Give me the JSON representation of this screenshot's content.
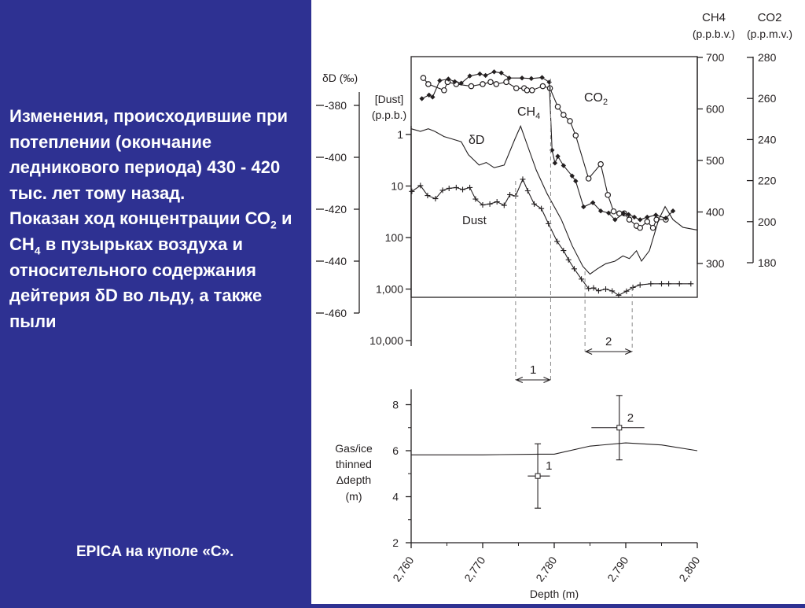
{
  "description": {
    "line1": "Изменения, происходившие при потеплении (окончание ледникового периода) 430 - 420 тыс. лет тому назад.",
    "line2_pre": "Показан ход концентрации СО",
    "sub1": "2",
    "line2_mid": " и СН",
    "sub2": "4",
    "line2_post": " в пузырьках воздуха и относительного содержания дейтерия δD во льду, а также пыли"
  },
  "caption": "EPICA  на куполе «С».",
  "colors": {
    "background": "#2e3192",
    "panel": "#ffffff",
    "ink": "#231f20",
    "dashed": "#8a8a8a"
  },
  "chart_data": [
    {
      "type": "line",
      "x_label": "Depth (m)",
      "x_ticks": [
        "2,760",
        "2,770",
        "2,780",
        "2,790",
        "2,800"
      ],
      "xlim": [
        2760,
        2800
      ],
      "axes": {
        "dD": {
          "label": "δD (‰)",
          "ticks": [
            "-380",
            "-400",
            "-420",
            "-440",
            "-460"
          ],
          "range": [
            -460,
            -380
          ]
        },
        "dust": {
          "label_line1": "[Dust]",
          "label_line2": "(p.p.b.)",
          "ticks": [
            "1",
            "10",
            "100",
            "1,000",
            "10,000"
          ],
          "scale": "log",
          "range": [
            1,
            10000
          ]
        },
        "ch4": {
          "label_line1": "CH4",
          "label_line2": "(p.p.b.v.)",
          "ticks": [
            "700",
            "600",
            "500",
            "400",
            "300"
          ],
          "range": [
            300,
            700
          ]
        },
        "co2": {
          "label_line1": "CO2",
          "label_line2": "(p.p.m.v.)",
          "ticks": [
            "280",
            "260",
            "240",
            "220",
            "200",
            "180"
          ],
          "range": [
            180,
            280
          ]
        }
      },
      "series_labels": {
        "co2": {
          "main": "CO",
          "sub": "2"
        },
        "ch4": {
          "main": "CH",
          "sub": "4"
        },
        "dD": "δD",
        "dust": "Dust"
      },
      "events": [
        {
          "label": "1",
          "x0": 2774.6,
          "x1": 2779.5
        },
        {
          "label": "2",
          "x0": 2784.3,
          "x1": 2790.9
        }
      ],
      "series": [
        {
          "id": "co2",
          "axis": "co2",
          "marker": "circle",
          "points": [
            [
              2761.7,
              270
            ],
            [
              2762.4,
              267
            ],
            [
              2764.6,
              264
            ],
            [
              2765.1,
              268
            ],
            [
              2766.3,
              267
            ],
            [
              2768.4,
              266
            ],
            [
              2770.0,
              267
            ],
            [
              2771.1,
              268
            ],
            [
              2771.9,
              267
            ],
            [
              2773.3,
              268
            ],
            [
              2774.7,
              265
            ],
            [
              2775.8,
              265
            ],
            [
              2776.2,
              264
            ],
            [
              2776.9,
              264
            ],
            [
              2778.4,
              266
            ],
            [
              2779.4,
              265
            ],
            [
              2780.5,
              256
            ],
            [
              2781.3,
              252
            ],
            [
              2782.2,
              249
            ],
            [
              2783.0,
              242
            ],
            [
              2784.8,
              221
            ],
            [
              2786.5,
              228
            ],
            [
              2787.5,
              213
            ],
            [
              2788.3,
              205
            ],
            [
              2789.1,
              204
            ],
            [
              2789.8,
              204
            ],
            [
              2790.5,
              201
            ],
            [
              2791.5,
              198
            ],
            [
              2792.0,
              197
            ],
            [
              2793.0,
              200
            ],
            [
              2793.8,
              197
            ],
            [
              2794.3,
              201
            ],
            [
              2795.6,
              201
            ]
          ]
        },
        {
          "id": "ch4",
          "axis": "ch4",
          "marker": "diamond",
          "points": [
            [
              2761.5,
              620
            ],
            [
              2762.5,
              627
            ],
            [
              2763.0,
              623
            ],
            [
              2764.0,
              655
            ],
            [
              2765.2,
              658
            ],
            [
              2766.1,
              653
            ],
            [
              2767.0,
              650
            ],
            [
              2768.2,
              664
            ],
            [
              2769.6,
              668
            ],
            [
              2770.4,
              665
            ],
            [
              2771.6,
              672
            ],
            [
              2772.6,
              670
            ],
            [
              2773.7,
              660
            ],
            [
              2775.5,
              660
            ],
            [
              2776.8,
              659
            ],
            [
              2778.3,
              661
            ],
            [
              2779.3,
              652
            ],
            [
              2779.7,
              520
            ],
            [
              2780.1,
              495
            ],
            [
              2780.5,
              508
            ],
            [
              2781.3,
              490
            ],
            [
              2782.5,
              470
            ],
            [
              2783.0,
              460
            ],
            [
              2784.1,
              410
            ],
            [
              2785.4,
              418
            ],
            [
              2786.5,
              402
            ],
            [
              2787.6,
              398
            ],
            [
              2788.5,
              385
            ],
            [
              2789.7,
              397
            ],
            [
              2790.4,
              395
            ],
            [
              2791.2,
              390
            ],
            [
              2792.0,
              385
            ],
            [
              2793.0,
              390
            ],
            [
              2794.2,
              394
            ],
            [
              2795.6,
              388
            ],
            [
              2796.6,
              402
            ]
          ]
        },
        {
          "id": "dD",
          "axis": "dD",
          "marker": "none",
          "points": [
            [
              2760.0,
              -389
            ],
            [
              2761.3,
              -390
            ],
            [
              2762.4,
              -389
            ],
            [
              2763.3,
              -390
            ],
            [
              2764.6,
              -392
            ],
            [
              2765.8,
              -393
            ],
            [
              2767.0,
              -394
            ],
            [
              2768.0,
              -399
            ],
            [
              2769.5,
              -403
            ],
            [
              2770.5,
              -402
            ],
            [
              2771.6,
              -404
            ],
            [
              2773.0,
              -403
            ],
            [
              2774.5,
              -393
            ],
            [
              2775.3,
              -388
            ],
            [
              2776.2,
              -395
            ],
            [
              2777.5,
              -405
            ],
            [
              2779.0,
              -414
            ],
            [
              2781.0,
              -424
            ],
            [
              2782.5,
              -434
            ],
            [
              2784.0,
              -442
            ],
            [
              2785.0,
              -445
            ],
            [
              2786.0,
              -443
            ],
            [
              2787.2,
              -441
            ],
            [
              2788.5,
              -440
            ],
            [
              2789.6,
              -438
            ],
            [
              2790.5,
              -439
            ],
            [
              2791.5,
              -436
            ],
            [
              2792.2,
              -440
            ],
            [
              2793.3,
              -436
            ],
            [
              2794.6,
              -424
            ],
            [
              2795.5,
              -419
            ],
            [
              2796.6,
              -424
            ],
            [
              2798.0,
              -427
            ],
            [
              2800.0,
              -428
            ]
          ]
        },
        {
          "id": "dust",
          "axis": "dust",
          "marker": "plus",
          "points": [
            [
              2760.1,
              12.7
            ],
            [
              2761.3,
              9.8
            ],
            [
              2762.3,
              15.3
            ],
            [
              2763.4,
              17.6
            ],
            [
              2764.4,
              12.1
            ],
            [
              2765.3,
              11.1
            ],
            [
              2766.3,
              10.7
            ],
            [
              2767.2,
              11.7
            ],
            [
              2768.2,
              10.7
            ],
            [
              2769.0,
              17.9
            ],
            [
              2770.0,
              23.3
            ],
            [
              2771.0,
              22.3
            ],
            [
              2772.0,
              20.2
            ],
            [
              2773.0,
              23.7
            ],
            [
              2773.8,
              14.7
            ],
            [
              2774.6,
              15.6
            ],
            [
              2775.6,
              7.4
            ],
            [
              2776.3,
              12.4
            ],
            [
              2777.2,
              22.3
            ],
            [
              2778.2,
              27.4
            ],
            [
              2779.2,
              54
            ],
            [
              2780.4,
              119
            ],
            [
              2781.3,
              179
            ],
            [
              2782.0,
              271
            ],
            [
              2782.8,
              405
            ],
            [
              2783.8,
              640
            ],
            [
              2784.8,
              980
            ],
            [
              2785.5,
              950
            ],
            [
              2786.2,
              1080
            ],
            [
              2787.2,
              1000
            ],
            [
              2788.1,
              1090
            ],
            [
              2789.0,
              1320
            ],
            [
              2790.1,
              1100
            ],
            [
              2791.0,
              930
            ],
            [
              2792.0,
              830
            ],
            [
              2793.5,
              790
            ],
            [
              2795.0,
              790
            ],
            [
              2796.0,
              790
            ],
            [
              2797.5,
              790
            ],
            [
              2799.1,
              790
            ]
          ]
        }
      ]
    },
    {
      "type": "line",
      "y_label_lines": [
        "Gas/ice",
        "thinned",
        "Δdepth",
        "(m)"
      ],
      "y_ticks": [
        "8",
        "6",
        "4",
        "2"
      ],
      "ylim": [
        2,
        9
      ],
      "xlim": [
        2760,
        2800
      ],
      "thinned": [
        [
          2760.0,
          5.82
        ],
        [
          2770.0,
          5.82
        ],
        [
          2778.0,
          5.85
        ],
        [
          2780.0,
          5.85
        ],
        [
          2785.0,
          6.2
        ],
        [
          2790.0,
          6.34
        ],
        [
          2795.0,
          6.25
        ],
        [
          2800.0,
          6.0
        ]
      ],
      "points": [
        {
          "label": "1",
          "x": 2777.7,
          "y": 4.9,
          "y_low": 3.5,
          "y_high": 6.3,
          "x_low": 2776.3,
          "x_high": 2779.4
        },
        {
          "label": "2",
          "x": 2789.1,
          "y": 7.0,
          "y_low": 5.6,
          "y_high": 8.4,
          "x_low": 2785.2,
          "x_high": 2792.6
        }
      ]
    }
  ]
}
